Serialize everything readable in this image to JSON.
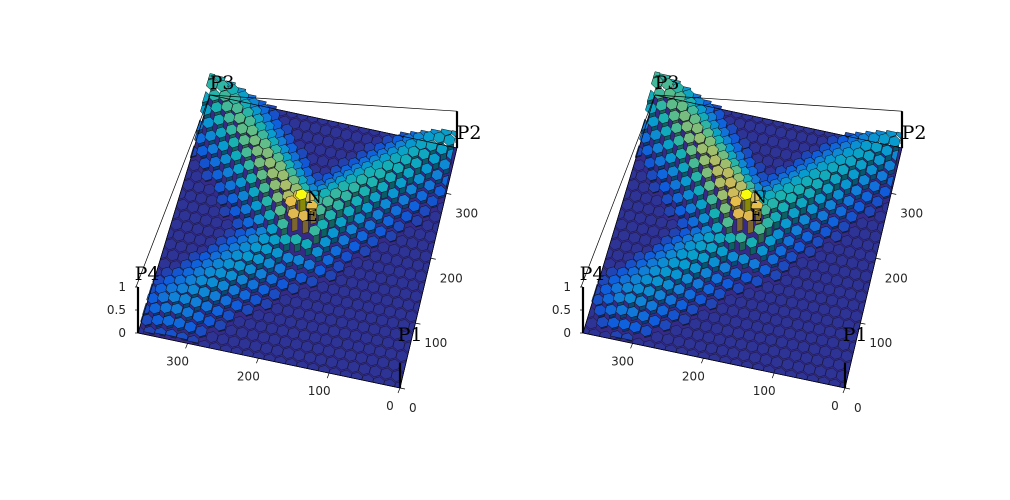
{
  "chart_data": [
    {
      "type": "surface",
      "title": "",
      "corner_labels": [
        "P3",
        "P2",
        "P4",
        "P1"
      ],
      "center_labels": [
        "N",
        "E"
      ],
      "x_axis": {
        "range": [
          0,
          370
        ],
        "ticks": [
          "0",
          "100",
          "200",
          "300"
        ]
      },
      "y_axis": {
        "range": [
          0,
          370
        ],
        "ticks": [
          "0",
          "100",
          "200",
          "300"
        ]
      },
      "z_axis": {
        "range": [
          0,
          1
        ],
        "ticks": [
          "0",
          "0.5",
          "1"
        ]
      },
      "grid": false,
      "colormap": "parula",
      "cell_shape": "hexagon",
      "peak": {
        "x": 185,
        "y": 185,
        "z": 1
      },
      "branches": [
        {
          "toward": "P3",
          "height": 0.72,
          "length": 1.0
        },
        {
          "toward": "P2",
          "height": 0.55,
          "length": 1.0
        },
        {
          "toward": "P4",
          "height": 0.38,
          "length": 0.75
        }
      ]
    },
    {
      "type": "surface",
      "title": "",
      "corner_labels": [
        "P3",
        "P2",
        "P4",
        "P1"
      ],
      "center_labels": [
        "N",
        "E"
      ],
      "x_axis": {
        "range": [
          0,
          370
        ],
        "ticks": [
          "0",
          "100",
          "200",
          "300"
        ]
      },
      "y_axis": {
        "range": [
          0,
          370
        ],
        "ticks": [
          "0",
          "100",
          "200",
          "300"
        ]
      },
      "z_axis": {
        "range": [
          0,
          1
        ],
        "ticks": [
          "0",
          "0.5",
          "1"
        ]
      },
      "grid": false,
      "colormap": "parula",
      "cell_shape": "hexagon",
      "peak": {
        "x": 185,
        "y": 185,
        "z": 1
      },
      "branches": [
        {
          "toward": "P3",
          "height": 0.78,
          "length": 1.0
        },
        {
          "toward": "P2",
          "height": 0.5,
          "length": 1.0
        },
        {
          "toward": "P4",
          "height": 0.42,
          "length": 0.7
        }
      ]
    }
  ]
}
